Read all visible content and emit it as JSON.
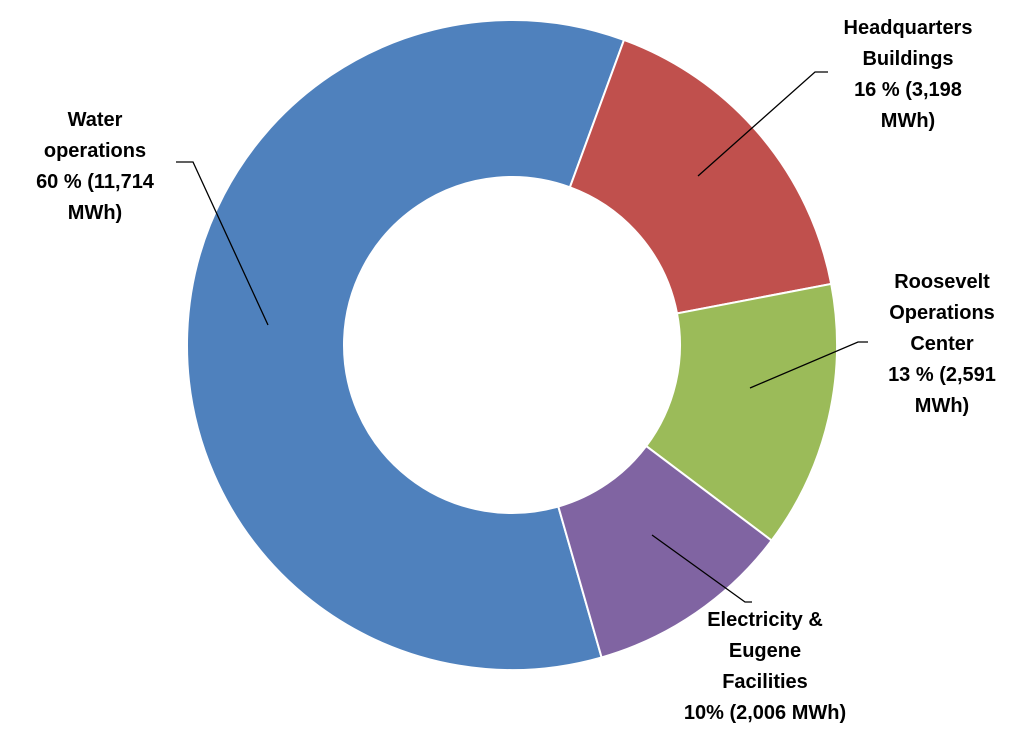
{
  "chart_data": {
    "type": "donut",
    "categories": [
      "Water operations",
      "Headquarters Buildings",
      "Roosevelt Operations Center",
      "Electricity & Eugene Facilities"
    ],
    "values": [
      11714,
      3198,
      2591,
      2006
    ],
    "value_labels": [
      "60 % (11,714 MWh)",
      "16 % (3,198 MWh)",
      "13 % (2,591 MWh)",
      "10% (2,006 MWh)"
    ],
    "colors": [
      "#4f81bd",
      "#c0504d",
      "#9bbb59",
      "#8064a2"
    ]
  }
}
